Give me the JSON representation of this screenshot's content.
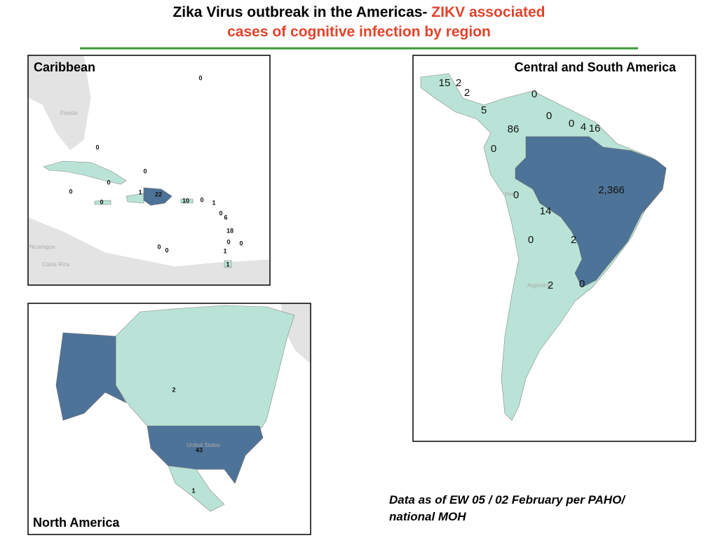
{
  "header": {
    "title": "Zika Virus outbreak in the Americas-",
    "highlight": [
      "ZIKV associated",
      "cases of cognitive infection by region"
    ]
  },
  "maps": [
    {
      "title": "Caribbean",
      "basemap_labels": [
        "Florida",
        "Nicaragua",
        "Costa Rica"
      ],
      "labels": [
        "0",
        "0",
        "0",
        "0",
        "0",
        "0",
        "1",
        "22",
        "10",
        "0",
        "1",
        "0",
        "6",
        "18",
        "0",
        "0",
        "0",
        "0",
        "1",
        "1"
      ]
    },
    {
      "title": "Central and South America",
      "basemap_labels": [
        "Peru",
        "Argentina"
      ],
      "labels": [
        "15",
        "2",
        "2",
        "5",
        "0",
        "0",
        "86",
        "0",
        "4",
        "16",
        "0",
        "2,366",
        "0",
        "14",
        "0",
        "2",
        "2",
        "0"
      ]
    },
    {
      "title": "North America",
      "basemap_labels": [
        "United States"
      ],
      "labels": [
        "2",
        "43",
        "1"
      ]
    }
  ],
  "footnote": [
    "Data as of EW 05 / 02 February per PAHO/",
    "national MOH"
  ]
}
